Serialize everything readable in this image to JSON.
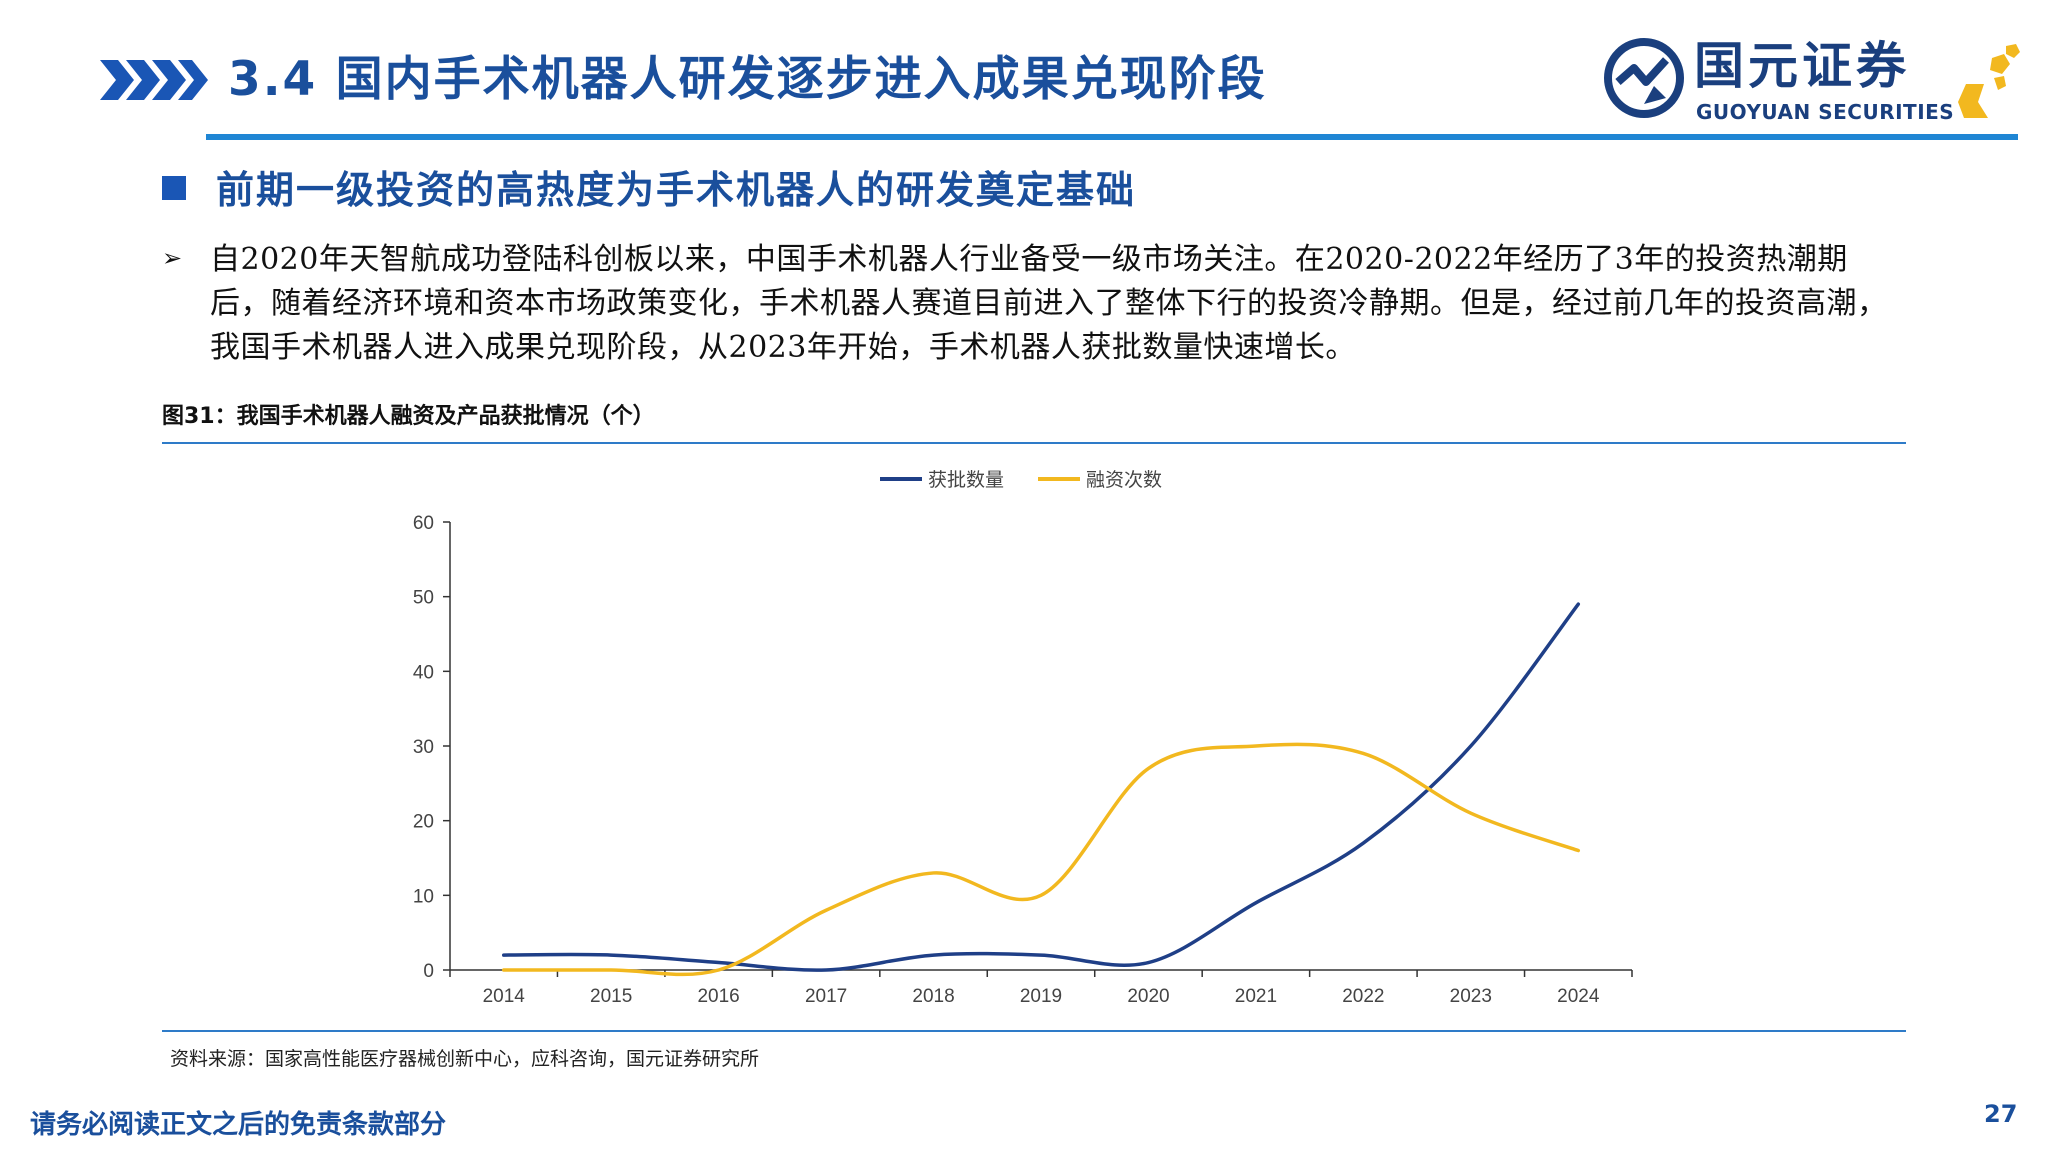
{
  "header": {
    "title": "3.4 国内手术机器人研发逐步进入成果兑现阶段",
    "logo_cn": "国元证券",
    "logo_en": "GUOYUAN SECURITIES"
  },
  "section": {
    "heading": "前期一级投资的高热度为手术机器人的研发奠定基础",
    "body": "自2020年天智航成功登陆科创板以来，中国手术机器人行业备受一级市场关注。在2020-2022年经历了3年的投资热潮期后，随着经济环境和资本市场政策变化，手术机器人赛道目前进入了整体下行的投资冷静期。但是，经过前几年的投资高潮，我国手术机器人进入成果兑现阶段，从2023年开始，手术机器人获批数量快速增长。"
  },
  "figure": {
    "label": "图31：我国手术机器人融资及产品获批情况（个）",
    "source": "资料来源：国家高性能医疗器械创新中心，应科咨询，国元证券研究所"
  },
  "chart_data": {
    "type": "line",
    "title": "",
    "xlabel": "",
    "ylabel": "",
    "categories": [
      "2014",
      "2015",
      "2016",
      "2017",
      "2018",
      "2019",
      "2020",
      "2021",
      "2022",
      "2023",
      "2024"
    ],
    "ylim": [
      0,
      60
    ],
    "yticks": [
      0,
      10,
      20,
      30,
      40,
      50,
      60
    ],
    "grid": false,
    "legend_position": "top-center",
    "series": [
      {
        "name": "获批数量",
        "color": "#1f3f87",
        "values": [
          2,
          2,
          1,
          0,
          2,
          2,
          1,
          9,
          17,
          30,
          49
        ]
      },
      {
        "name": "融资次数",
        "color": "#f2b81f",
        "values": [
          0,
          0,
          0,
          8,
          13,
          10,
          27,
          30,
          29,
          21,
          16
        ]
      }
    ]
  },
  "footer": {
    "disclaimer": "请务必阅读正文之后的免责条款部分",
    "page_number": "27"
  },
  "colors": {
    "title_blue": "#1a4f9c",
    "rule_blue": "#1f86d4",
    "logo_gold": "#f2b81f"
  }
}
